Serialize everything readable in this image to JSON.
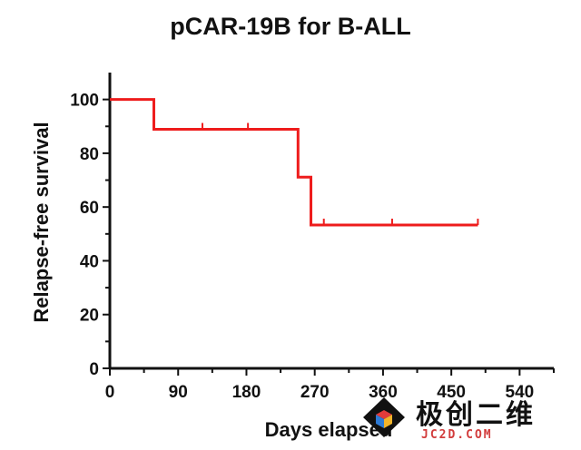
{
  "chart_data": {
    "type": "line",
    "title": "pCAR-19B for B-ALL",
    "xlabel": "Days elapsed",
    "ylabel": "Relapse-free survival",
    "xlim": [
      0,
      585
    ],
    "ylim": [
      0,
      110
    ],
    "xticks": [
      0,
      90,
      180,
      270,
      360,
      450,
      540
    ],
    "yticks": [
      0,
      20,
      40,
      60,
      80,
      100
    ],
    "grid": false,
    "series_color": "#ee1c1c",
    "steps": [
      {
        "x": 0,
        "y": 100
      },
      {
        "x": 58,
        "y": 88.9
      },
      {
        "x": 248,
        "y": 71.1
      },
      {
        "x": 265,
        "y": 53.3
      },
      {
        "x": 485,
        "y": 53.3
      }
    ],
    "censored": [
      {
        "x": 122,
        "y": 88.9
      },
      {
        "x": 182,
        "y": 88.9
      },
      {
        "x": 282,
        "y": 53.3
      },
      {
        "x": 372,
        "y": 53.3
      },
      {
        "x": 485,
        "y": 53.3
      }
    ]
  },
  "watermark": {
    "text_cn": "极创二维",
    "text_en": "JC2D.COM",
    "colors": [
      "#e23b3b",
      "#2e7bd6",
      "#f2b42a"
    ]
  }
}
